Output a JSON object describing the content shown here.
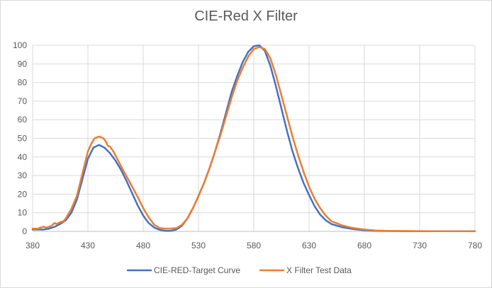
{
  "chart_data": {
    "type": "line",
    "title": "CIE-Red X Filter",
    "xlabel": "",
    "ylabel": "",
    "xlim": [
      380,
      780
    ],
    "ylim": [
      0,
      100
    ],
    "x_ticks": [
      380,
      430,
      480,
      530,
      580,
      630,
      680,
      730,
      780
    ],
    "y_ticks": [
      0,
      10,
      20,
      30,
      40,
      50,
      60,
      70,
      80,
      90,
      100
    ],
    "grid": true,
    "legend_position": "bottom",
    "series": [
      {
        "name": "CIE-RED-Target Curve",
        "color": "#4472c4",
        "x": [
          380,
          385,
          390,
          395,
          400,
          405,
          410,
          415,
          420,
          425,
          430,
          435,
          440,
          445,
          450,
          455,
          460,
          465,
          470,
          475,
          480,
          485,
          490,
          495,
          500,
          505,
          510,
          515,
          520,
          525,
          530,
          535,
          540,
          545,
          550,
          555,
          560,
          565,
          570,
          575,
          580,
          585,
          590,
          595,
          600,
          605,
          610,
          615,
          620,
          625,
          630,
          635,
          640,
          645,
          650,
          660,
          670,
          680,
          690,
          700,
          720,
          740,
          760,
          780
        ],
        "y": [
          1,
          1,
          1,
          1.5,
          2.5,
          4,
          6,
          10,
          17,
          28,
          39,
          45,
          46.5,
          45,
          42,
          38,
          33,
          27,
          20.5,
          14,
          8.5,
          4.5,
          2,
          0.8,
          0.3,
          0.3,
          1,
          3,
          7,
          12.5,
          19,
          26,
          34,
          43,
          53,
          64,
          75,
          83.5,
          91,
          96.5,
          99.5,
          100,
          97,
          89,
          78,
          66,
          54,
          43,
          34,
          26,
          19.5,
          13.5,
          9,
          6,
          4,
          2.2,
          1.2,
          0.6,
          0.3,
          0.2,
          0.1,
          0.1,
          0.1,
          0.1
        ]
      },
      {
        "name": "X Filter Test Data",
        "color": "#ed7d31",
        "x": [
          380,
          385,
          387,
          390,
          392,
          395,
          397,
          400,
          402,
          405,
          408,
          410,
          415,
          420,
          425,
          430,
          433,
          436,
          440,
          444,
          446,
          448,
          450,
          453,
          456,
          460,
          465,
          470,
          475,
          480,
          485,
          490,
          495,
          500,
          505,
          510,
          515,
          520,
          525,
          530,
          535,
          540,
          545,
          550,
          555,
          560,
          565,
          570,
          575,
          580,
          585,
          590,
          595,
          600,
          605,
          610,
          615,
          620,
          625,
          630,
          635,
          640,
          645,
          650,
          660,
          670,
          680,
          690,
          700,
          720,
          740,
          760,
          780
        ],
        "y": [
          1.5,
          1.5,
          2,
          2.5,
          2,
          2.5,
          3,
          4.5,
          4,
          5,
          5.5,
          7,
          12,
          19,
          31,
          43,
          47,
          50,
          51,
          50,
          48.5,
          46,
          45.5,
          43,
          39.5,
          35,
          29.5,
          24,
          18.5,
          12.5,
          7.5,
          3.5,
          1.8,
          1.5,
          1.5,
          1.8,
          3.5,
          7,
          12.5,
          19,
          26,
          34,
          43,
          52,
          62,
          72,
          81,
          88,
          94,
          98,
          99,
          98,
          93,
          84,
          73,
          62,
          51,
          41,
          32,
          24,
          17.5,
          12.5,
          8.5,
          5.5,
          3.2,
          1.8,
          1,
          0.5,
          0.3,
          0.2,
          0.1,
          0.1,
          0.1
        ]
      }
    ]
  }
}
